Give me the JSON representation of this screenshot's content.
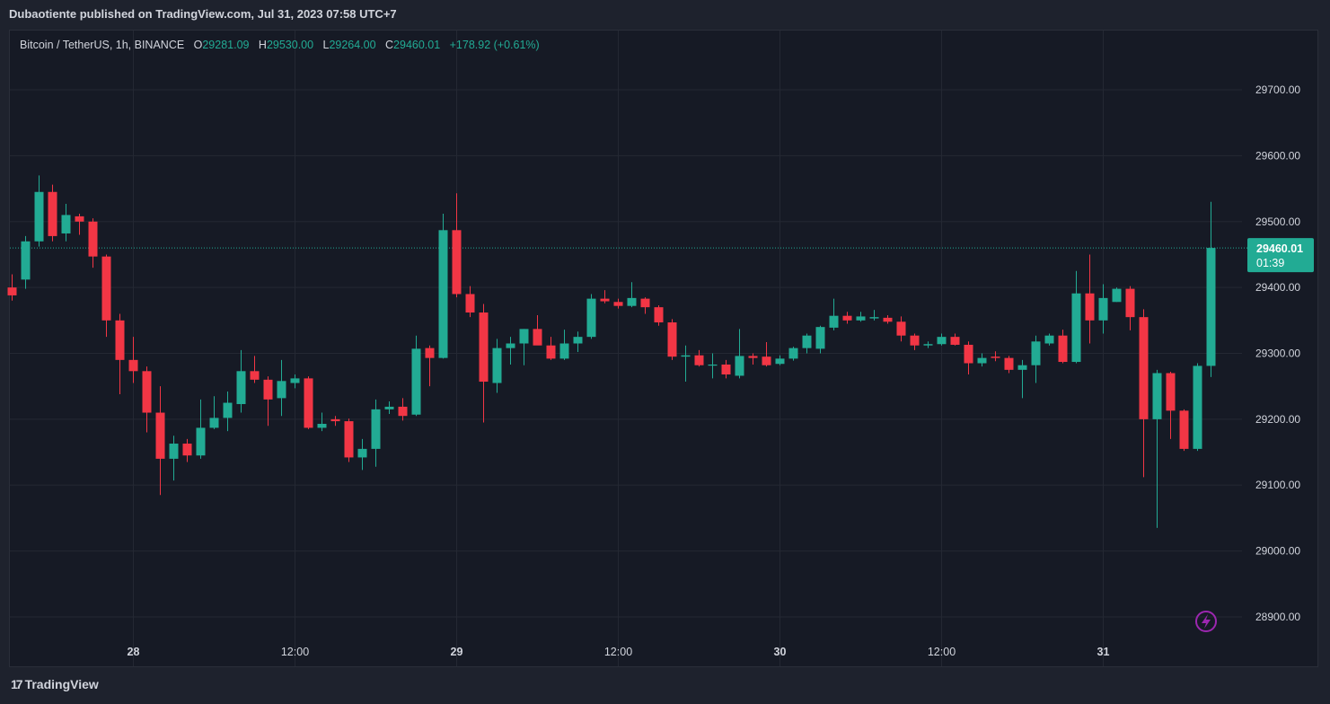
{
  "header": {
    "published_by": "Dubaotiente published on TradingView.com, Jul 31, 2023 07:58 UTC+7"
  },
  "legend": {
    "symbol": "Bitcoin / TetherUS, 1h, BINANCE",
    "o_label": "O",
    "o_value": "29281.09",
    "h_label": "H",
    "h_value": "29530.00",
    "l_label": "L",
    "l_value": "29264.00",
    "c_label": "C",
    "c_value": "29460.01",
    "change": "+178.92 (+0.61%)"
  },
  "price_tag": {
    "price": "29460.01",
    "countdown": "01:39"
  },
  "footer": {
    "brand": "TradingView",
    "logo_mark": "17"
  },
  "colors": {
    "up": "#22ab94",
    "down": "#f23645",
    "grid": "#242833",
    "axis_text": "#d1d4dc",
    "background": "#161a25",
    "flash_icon": "#9c27b0"
  },
  "icons": {
    "flash": "lightning-icon",
    "logo": "tradingview-logo-icon"
  },
  "chart_data": {
    "type": "candlestick",
    "title": "Bitcoin / TetherUS, 1h, BINANCE",
    "ylim": [
      28825,
      29790
    ],
    "y_ticks": [
      28900,
      29000,
      29100,
      29200,
      29300,
      29400,
      29500,
      29600,
      29700
    ],
    "y_tick_labels": [
      "28900.00",
      "29000.00",
      "29100.00",
      "29200.00",
      "29300.00",
      "29400.00",
      "29500.00",
      "29600.00",
      "29700.00"
    ],
    "x_ticks": [
      {
        "label": "28",
        "index": 9
      },
      {
        "label": "12:00",
        "index": 21
      },
      {
        "label": "29",
        "index": 33
      },
      {
        "label": "12:00",
        "index": 45
      },
      {
        "label": "30",
        "index": 57
      },
      {
        "label": "12:00",
        "index": 69
      },
      {
        "label": "31",
        "index": 81
      }
    ],
    "grid": true,
    "last_price": 29460.01,
    "candles": [
      {
        "o": 29400,
        "h": 29420,
        "l": 29380,
        "c": 29388
      },
      {
        "o": 29412,
        "h": 29478,
        "l": 29398,
        "c": 29470
      },
      {
        "o": 29470,
        "h": 29570,
        "l": 29462,
        "c": 29545
      },
      {
        "o": 29545,
        "h": 29556,
        "l": 29470,
        "c": 29478
      },
      {
        "o": 29482,
        "h": 29527,
        "l": 29470,
        "c": 29510
      },
      {
        "o": 29508,
        "h": 29512,
        "l": 29480,
        "c": 29500
      },
      {
        "o": 29500,
        "h": 29505,
        "l": 29430,
        "c": 29447
      },
      {
        "o": 29447,
        "h": 29450,
        "l": 29325,
        "c": 29350
      },
      {
        "o": 29350,
        "h": 29360,
        "l": 29238,
        "c": 29290
      },
      {
        "o": 29290,
        "h": 29325,
        "l": 29255,
        "c": 29273
      },
      {
        "o": 29273,
        "h": 29280,
        "l": 29180,
        "c": 29210
      },
      {
        "o": 29210,
        "h": 29250,
        "l": 29085,
        "c": 29140
      },
      {
        "o": 29140,
        "h": 29175,
        "l": 29107,
        "c": 29163
      },
      {
        "o": 29163,
        "h": 29170,
        "l": 29135,
        "c": 29145
      },
      {
        "o": 29145,
        "h": 29230,
        "l": 29140,
        "c": 29187
      },
      {
        "o": 29187,
        "h": 29235,
        "l": 29185,
        "c": 29202
      },
      {
        "o": 29202,
        "h": 29242,
        "l": 29182,
        "c": 29225
      },
      {
        "o": 29223,
        "h": 29305,
        "l": 29210,
        "c": 29273
      },
      {
        "o": 29273,
        "h": 29296,
        "l": 29255,
        "c": 29260
      },
      {
        "o": 29260,
        "h": 29265,
        "l": 29190,
        "c": 29230
      },
      {
        "o": 29232,
        "h": 29290,
        "l": 29205,
        "c": 29258
      },
      {
        "o": 29255,
        "h": 29268,
        "l": 29247,
        "c": 29262
      },
      {
        "o": 29262,
        "h": 29265,
        "l": 29185,
        "c": 29187
      },
      {
        "o": 29187,
        "h": 29210,
        "l": 29182,
        "c": 29193
      },
      {
        "o": 29200,
        "h": 29205,
        "l": 29190,
        "c": 29197
      },
      {
        "o": 29197,
        "h": 29201,
        "l": 29135,
        "c": 29142
      },
      {
        "o": 29142,
        "h": 29170,
        "l": 29123,
        "c": 29155
      },
      {
        "o": 29155,
        "h": 29230,
        "l": 29128,
        "c": 29215
      },
      {
        "o": 29215,
        "h": 29227,
        "l": 29208,
        "c": 29219
      },
      {
        "o": 29219,
        "h": 29232,
        "l": 29198,
        "c": 29205
      },
      {
        "o": 29207,
        "h": 29327,
        "l": 29205,
        "c": 29307
      },
      {
        "o": 29308,
        "h": 29312,
        "l": 29250,
        "c": 29293
      },
      {
        "o": 29293,
        "h": 29512,
        "l": 29292,
        "c": 29487
      },
      {
        "o": 29487,
        "h": 29543,
        "l": 29385,
        "c": 29390
      },
      {
        "o": 29390,
        "h": 29402,
        "l": 29355,
        "c": 29362
      },
      {
        "o": 29362,
        "h": 29375,
        "l": 29195,
        "c": 29257
      },
      {
        "o": 29255,
        "h": 29322,
        "l": 29240,
        "c": 29308
      },
      {
        "o": 29308,
        "h": 29325,
        "l": 29283,
        "c": 29315
      },
      {
        "o": 29315,
        "h": 29337,
        "l": 29282,
        "c": 29337
      },
      {
        "o": 29337,
        "h": 29358,
        "l": 29318,
        "c": 29312
      },
      {
        "o": 29312,
        "h": 29325,
        "l": 29290,
        "c": 29292
      },
      {
        "o": 29292,
        "h": 29336,
        "l": 29290,
        "c": 29315
      },
      {
        "o": 29315,
        "h": 29333,
        "l": 29302,
        "c": 29325
      },
      {
        "o": 29325,
        "h": 29390,
        "l": 29322,
        "c": 29383
      },
      {
        "o": 29383,
        "h": 29396,
        "l": 29376,
        "c": 29379
      },
      {
        "o": 29378,
        "h": 29383,
        "l": 29368,
        "c": 29372
      },
      {
        "o": 29372,
        "h": 29408,
        "l": 29370,
        "c": 29384
      },
      {
        "o": 29383,
        "h": 29385,
        "l": 29360,
        "c": 29370
      },
      {
        "o": 29370,
        "h": 29373,
        "l": 29342,
        "c": 29347
      },
      {
        "o": 29347,
        "h": 29352,
        "l": 29290,
        "c": 29295
      },
      {
        "o": 29295,
        "h": 29312,
        "l": 29257,
        "c": 29297
      },
      {
        "o": 29297,
        "h": 29305,
        "l": 29280,
        "c": 29282
      },
      {
        "o": 29282,
        "h": 29300,
        "l": 29262,
        "c": 29283
      },
      {
        "o": 29283,
        "h": 29290,
        "l": 29262,
        "c": 29268
      },
      {
        "o": 29266,
        "h": 29337,
        "l": 29262,
        "c": 29296
      },
      {
        "o": 29296,
        "h": 29300,
        "l": 29283,
        "c": 29293
      },
      {
        "o": 29295,
        "h": 29317,
        "l": 29280,
        "c": 29282
      },
      {
        "o": 29284,
        "h": 29297,
        "l": 29282,
        "c": 29292
      },
      {
        "o": 29292,
        "h": 29310,
        "l": 29289,
        "c": 29308
      },
      {
        "o": 29308,
        "h": 29330,
        "l": 29300,
        "c": 29327
      },
      {
        "o": 29307,
        "h": 29342,
        "l": 29300,
        "c": 29340
      },
      {
        "o": 29339,
        "h": 29383,
        "l": 29335,
        "c": 29357
      },
      {
        "o": 29357,
        "h": 29363,
        "l": 29345,
        "c": 29350
      },
      {
        "o": 29350,
        "h": 29363,
        "l": 29348,
        "c": 29356
      },
      {
        "o": 29353,
        "h": 29366,
        "l": 29350,
        "c": 29355
      },
      {
        "o": 29354,
        "h": 29358,
        "l": 29345,
        "c": 29348
      },
      {
        "o": 29348,
        "h": 29356,
        "l": 29318,
        "c": 29327
      },
      {
        "o": 29327,
        "h": 29330,
        "l": 29305,
        "c": 29312
      },
      {
        "o": 29312,
        "h": 29318,
        "l": 29308,
        "c": 29314
      },
      {
        "o": 29314,
        "h": 29330,
        "l": 29312,
        "c": 29325
      },
      {
        "o": 29325,
        "h": 29330,
        "l": 29312,
        "c": 29313
      },
      {
        "o": 29313,
        "h": 29318,
        "l": 29268,
        "c": 29285
      },
      {
        "o": 29285,
        "h": 29300,
        "l": 29280,
        "c": 29293
      },
      {
        "o": 29295,
        "h": 29303,
        "l": 29288,
        "c": 29293
      },
      {
        "o": 29293,
        "h": 29296,
        "l": 29270,
        "c": 29275
      },
      {
        "o": 29275,
        "h": 29290,
        "l": 29232,
        "c": 29282
      },
      {
        "o": 29282,
        "h": 29327,
        "l": 29255,
        "c": 29318
      },
      {
        "o": 29315,
        "h": 29330,
        "l": 29312,
        "c": 29327
      },
      {
        "o": 29327,
        "h": 29336,
        "l": 29285,
        "c": 29287
      },
      {
        "o": 29287,
        "h": 29425,
        "l": 29285,
        "c": 29391
      },
      {
        "o": 29391,
        "h": 29450,
        "l": 29315,
        "c": 29350
      },
      {
        "o": 29350,
        "h": 29405,
        "l": 29330,
        "c": 29384
      },
      {
        "o": 29378,
        "h": 29400,
        "l": 29378,
        "c": 29398
      },
      {
        "o": 29398,
        "h": 29402,
        "l": 29335,
        "c": 29355
      },
      {
        "o": 29355,
        "h": 29367,
        "l": 29112,
        "c": 29200
      },
      {
        "o": 29200,
        "h": 29275,
        "l": 29035,
        "c": 29270
      },
      {
        "o": 29270,
        "h": 29272,
        "l": 29170,
        "c": 29213
      },
      {
        "o": 29213,
        "h": 29215,
        "l": 29152,
        "c": 29155
      },
      {
        "o": 29155,
        "h": 29285,
        "l": 29152,
        "c": 29281
      },
      {
        "o": 29281,
        "h": 29530,
        "l": 29264,
        "c": 29460
      }
    ]
  }
}
